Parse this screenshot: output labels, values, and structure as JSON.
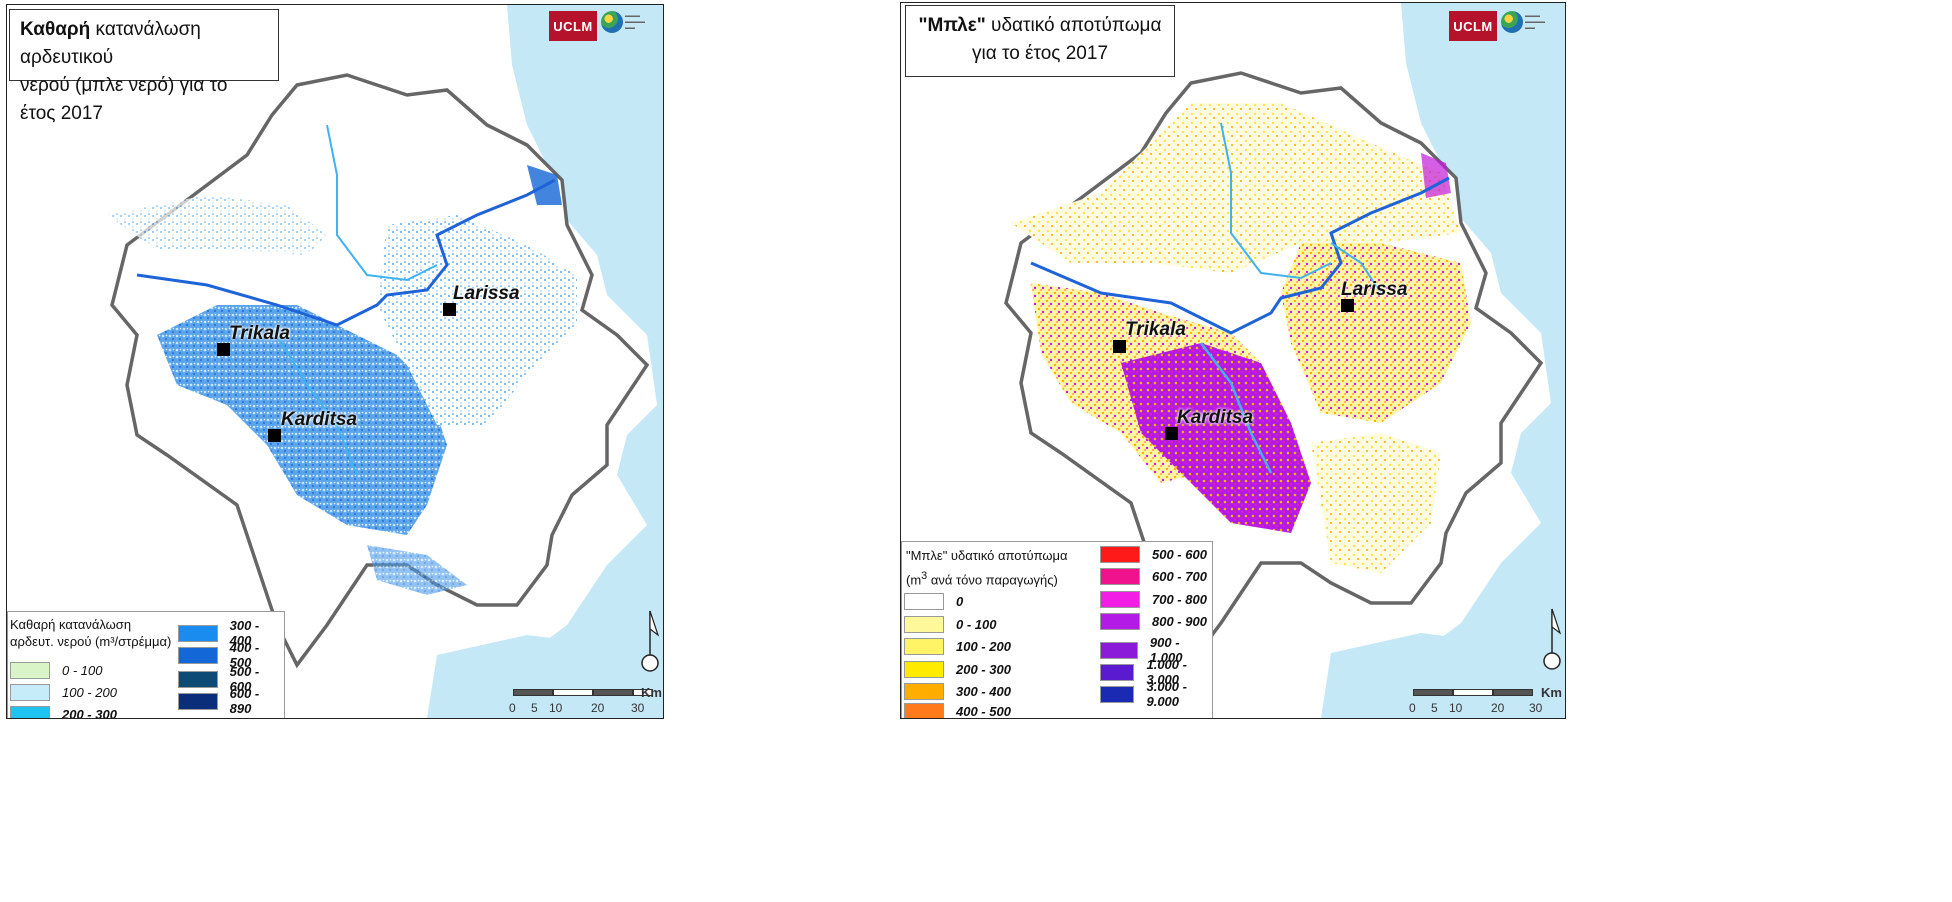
{
  "left_map": {
    "title_bold": "Καθαρή",
    "title_line1_rest": " κατανάλωση αρδευτικού",
    "title_line2": "νερού (μπλε νερό) για το έτος 2017",
    "logo_text": "UCLM",
    "cities": {
      "larissa": "Larissa",
      "trikala": "Trikala",
      "karditsa": "Karditsa"
    },
    "legend": {
      "title_line1": "Καθαρή κατανάλωση",
      "title_line2": "αρδευτ. νερού (m³/στρέμμα)",
      "items": [
        {
          "label": "0 - 100",
          "color": "#d9f5c8"
        },
        {
          "label": "100 - 200",
          "color": "#c6ecf9"
        },
        {
          "label": "200 - 300",
          "color": "#1ec3f0"
        },
        {
          "label": "300 - 400",
          "color": "#1a8cf0"
        },
        {
          "label": "400 - 500",
          "color": "#1467d6"
        },
        {
          "label": "500 - 600",
          "color": "#0d4b74"
        },
        {
          "label": "600 - 890",
          "color": "#0a2e7a"
        }
      ]
    },
    "scale": {
      "ticks": [
        "0",
        "5",
        "10",
        "20",
        "30"
      ],
      "unit": "Km"
    }
  },
  "right_map": {
    "title_bold": "\"Μπλε\"",
    "title_line1_rest": " υδατικό αποτύπωμα",
    "title_line2": "για το έτος 2017",
    "logo_text": "UCLM",
    "cities": {
      "larissa": "Larissa",
      "trikala": "Trikala",
      "karditsa": "Karditsa"
    },
    "legend": {
      "title_line1": "\"Μπλε\" υδατικό αποτύπωμα",
      "title_line2_pre": "(m",
      "title_line2_sup": "3",
      "title_line2_post": " ανά τόνο παραγωγής)",
      "items": [
        {
          "label": "0",
          "color": "#ffffff"
        },
        {
          "label": "0 - 100",
          "color": "#fff89a"
        },
        {
          "label": "100 - 200",
          "color": "#fff466"
        },
        {
          "label": "200 - 300",
          "color": "#ffea00"
        },
        {
          "label": "300 - 400",
          "color": "#ffae00"
        },
        {
          "label": "400 - 500",
          "color": "#ff7a1a"
        },
        {
          "label": "500 - 600",
          "color": "#ff1a1a"
        },
        {
          "label": "600 - 700",
          "color": "#f0128c"
        },
        {
          "label": "700 - 800",
          "color": "#f21ee6"
        },
        {
          "label": "800 - 900",
          "color": "#b31ae6"
        },
        {
          "label": "900 - 1.000",
          "color": "#8c1ad9"
        },
        {
          "label": "1.000 - 3.000",
          "color": "#5a1ad0"
        },
        {
          "label": "3.000 - 9.000",
          "color": "#1a2ab3"
        }
      ]
    },
    "scale": {
      "ticks": [
        "0",
        "5",
        "10",
        "20",
        "30"
      ],
      "unit": "Km"
    }
  }
}
